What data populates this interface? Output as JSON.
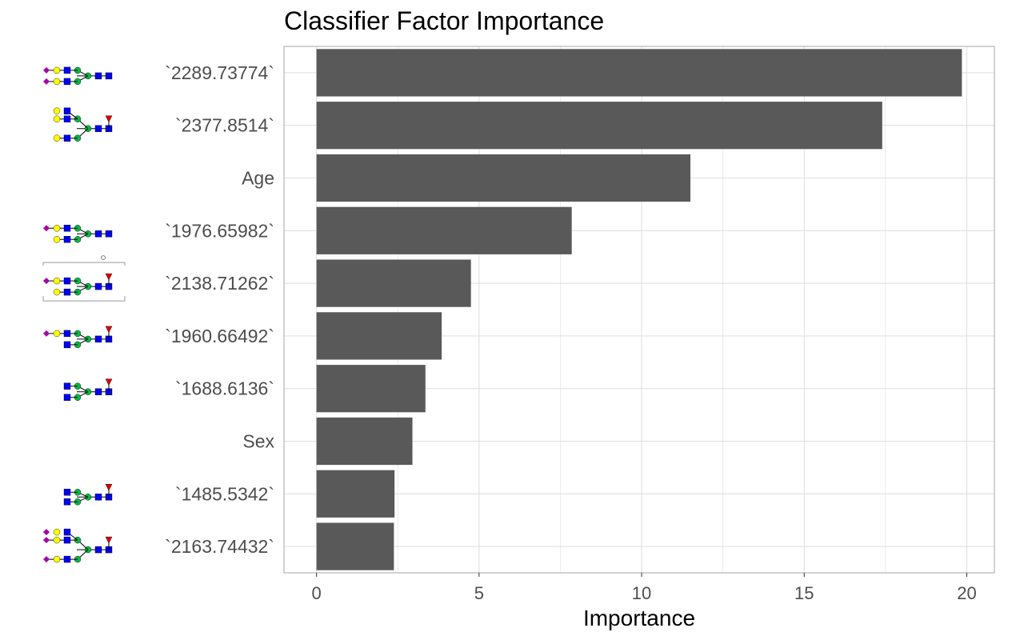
{
  "chart_data": {
    "type": "bar",
    "orientation": "horizontal",
    "title": "Classifier Factor Importance",
    "xlabel": "Importance",
    "ylabel": "",
    "xlim": [
      -1,
      20.85
    ],
    "xticks": [
      0,
      5,
      10,
      15,
      20
    ],
    "grid": true,
    "legend": "none",
    "bar_color": "#595959",
    "categories": [
      "`2289.73774`",
      "`2377.8514`",
      "Age",
      "`1976.65982`",
      "`2138.71262`",
      "`1960.66492`",
      "`1688.6136`",
      "Sex",
      "`1485.5342`",
      "`2163.74432`"
    ],
    "values": [
      19.85,
      17.4,
      11.5,
      7.85,
      4.75,
      3.85,
      3.35,
      2.95,
      2.4,
      2.38
    ],
    "glycan_icons": [
      "glycan-2289-icon",
      "glycan-2377-icon",
      "",
      "glycan-1976-icon",
      "glycan-2138-icon",
      "glycan-1960-icon",
      "glycan-1688-icon",
      "",
      "glycan-1485-icon",
      "glycan-2163-icon"
    ]
  },
  "colors": {
    "sialic_acid": "#aa00aa",
    "galactose": "#ffff00",
    "glcnac": "#0000ee",
    "mannose": "#00bb44",
    "fucose": "#dd0000",
    "panel_border": "#b3b3b3",
    "grid": "#e0e0e0"
  }
}
